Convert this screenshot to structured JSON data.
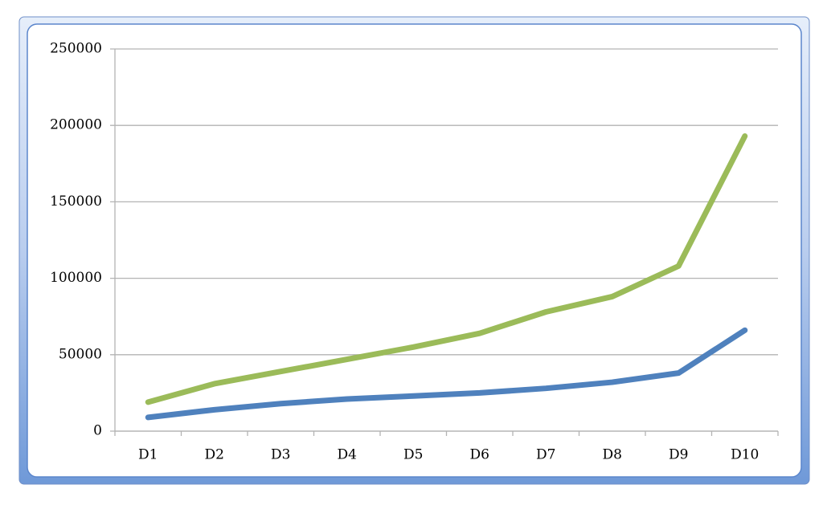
{
  "chart_data": {
    "type": "line",
    "categories": [
      "D1",
      "D2",
      "D3",
      "D4",
      "D5",
      "D6",
      "D7",
      "D8",
      "D9",
      "D10"
    ],
    "series": [
      {
        "color": "#4f81bd",
        "values": [
          9000,
          14000,
          18000,
          21000,
          23000,
          25000,
          28000,
          32000,
          38000,
          66000
        ]
      },
      {
        "color": "#9bbb59",
        "values": [
          19000,
          31000,
          39000,
          47000,
          55000,
          64000,
          78000,
          88000,
          108000,
          193000
        ]
      }
    ],
    "ylim": [
      0,
      250000
    ],
    "yticks": [
      0,
      50000,
      100000,
      150000,
      200000,
      250000
    ],
    "grid": true
  }
}
